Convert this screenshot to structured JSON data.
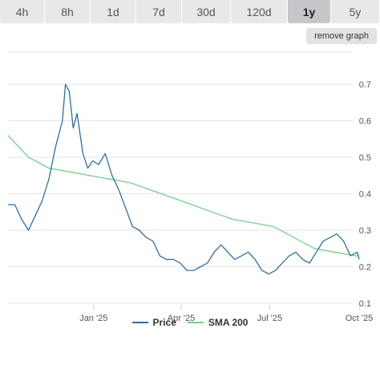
{
  "tabs": [
    {
      "label": "4h",
      "active": false
    },
    {
      "label": "8h",
      "active": false
    },
    {
      "label": "1d",
      "active": false
    },
    {
      "label": "7d",
      "active": false
    },
    {
      "label": "30d",
      "active": false
    },
    {
      "label": "120d",
      "active": false
    },
    {
      "label": "1y",
      "active": true
    },
    {
      "label": "5y",
      "active": false
    }
  ],
  "remove_graph_label": "remove graph",
  "colors": {
    "price": "#2f6ea8",
    "sma": "#6fd38b",
    "grid": "#e6e6e6"
  },
  "chart_data": {
    "type": "line",
    "xlabel": "",
    "ylabel": "",
    "ylim": [
      0.1,
      0.7
    ],
    "y_ticks": [
      0.7,
      0.6,
      0.5,
      0.4,
      0.3,
      0.2,
      0.1
    ],
    "x_ticks": [
      {
        "date": "2025-01-01",
        "label": "Jan '25"
      },
      {
        "date": "2025-04-01",
        "label": "Apr '25"
      },
      {
        "date": "2025-07-01",
        "label": "Jul '25"
      },
      {
        "date": "2025-10-01",
        "label": "Oct '25"
      }
    ],
    "x_range": [
      "2024-10-05",
      "2025-10-01"
    ],
    "series": [
      {
        "name": "Price",
        "points": [
          [
            "2024-10-05",
            0.37
          ],
          [
            "2024-10-12",
            0.37
          ],
          [
            "2024-10-19",
            0.33
          ],
          [
            "2024-10-26",
            0.3
          ],
          [
            "2024-11-02",
            0.34
          ],
          [
            "2024-11-09",
            0.38
          ],
          [
            "2024-11-16",
            0.44
          ],
          [
            "2024-11-23",
            0.53
          ],
          [
            "2024-11-30",
            0.6
          ],
          [
            "2024-12-03",
            0.7
          ],
          [
            "2024-12-07",
            0.68
          ],
          [
            "2024-12-11",
            0.58
          ],
          [
            "2024-12-15",
            0.62
          ],
          [
            "2024-12-21",
            0.51
          ],
          [
            "2024-12-26",
            0.47
          ],
          [
            "2024-12-31",
            0.49
          ],
          [
            "2025-01-06",
            0.48
          ],
          [
            "2025-01-13",
            0.51
          ],
          [
            "2025-01-20",
            0.45
          ],
          [
            "2025-01-27",
            0.41
          ],
          [
            "2025-02-03",
            0.36
          ],
          [
            "2025-02-10",
            0.31
          ],
          [
            "2025-02-17",
            0.3
          ],
          [
            "2025-02-24",
            0.28
          ],
          [
            "2025-03-03",
            0.27
          ],
          [
            "2025-03-10",
            0.23
          ],
          [
            "2025-03-17",
            0.22
          ],
          [
            "2025-03-24",
            0.22
          ],
          [
            "2025-03-31",
            0.21
          ],
          [
            "2025-04-07",
            0.19
          ],
          [
            "2025-04-14",
            0.19
          ],
          [
            "2025-04-21",
            0.2
          ],
          [
            "2025-04-28",
            0.21
          ],
          [
            "2025-05-05",
            0.24
          ],
          [
            "2025-05-12",
            0.26
          ],
          [
            "2025-05-19",
            0.24
          ],
          [
            "2025-05-26",
            0.22
          ],
          [
            "2025-06-02",
            0.23
          ],
          [
            "2025-06-09",
            0.24
          ],
          [
            "2025-06-16",
            0.22
          ],
          [
            "2025-06-23",
            0.19
          ],
          [
            "2025-06-30",
            0.18
          ],
          [
            "2025-07-07",
            0.19
          ],
          [
            "2025-07-14",
            0.21
          ],
          [
            "2025-07-21",
            0.23
          ],
          [
            "2025-07-28",
            0.24
          ],
          [
            "2025-08-04",
            0.22
          ],
          [
            "2025-08-11",
            0.21
          ],
          [
            "2025-08-18",
            0.24
          ],
          [
            "2025-08-25",
            0.27
          ],
          [
            "2025-09-01",
            0.28
          ],
          [
            "2025-09-08",
            0.29
          ],
          [
            "2025-09-15",
            0.27
          ],
          [
            "2025-09-22",
            0.23
          ],
          [
            "2025-09-29",
            0.24
          ],
          [
            "2025-10-01",
            0.22
          ]
        ]
      },
      {
        "name": "SMA 200",
        "points": [
          [
            "2024-10-05",
            0.56
          ],
          [
            "2024-10-26",
            0.5
          ],
          [
            "2024-11-16",
            0.47
          ],
          [
            "2024-12-07",
            0.46
          ],
          [
            "2024-12-28",
            0.45
          ],
          [
            "2025-01-18",
            0.44
          ],
          [
            "2025-02-08",
            0.43
          ],
          [
            "2025-03-01",
            0.41
          ],
          [
            "2025-03-22",
            0.39
          ],
          [
            "2025-04-12",
            0.37
          ],
          [
            "2025-05-03",
            0.35
          ],
          [
            "2025-05-24",
            0.33
          ],
          [
            "2025-06-14",
            0.32
          ],
          [
            "2025-07-05",
            0.31
          ],
          [
            "2025-07-26",
            0.28
          ],
          [
            "2025-08-16",
            0.25
          ],
          [
            "2025-09-06",
            0.24
          ],
          [
            "2025-09-27",
            0.23
          ],
          [
            "2025-10-01",
            0.23
          ]
        ]
      }
    ]
  }
}
